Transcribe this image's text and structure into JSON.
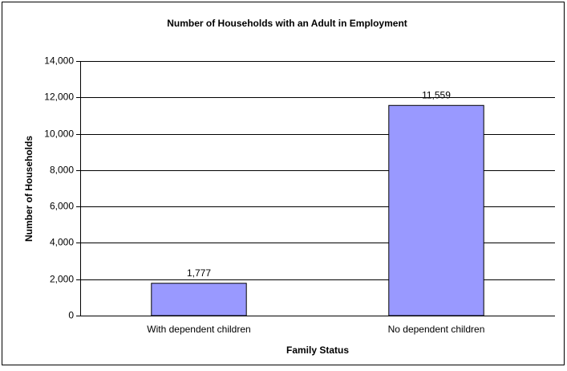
{
  "chart_data": {
    "type": "bar",
    "title": "Number of Households with an Adult in Employment",
    "x_label": "Family Status",
    "y_label": "Number of Households",
    "categories": [
      "With dependent children",
      "No dependent children"
    ],
    "values": [
      1777,
      11559
    ],
    "value_labels": [
      "1,777",
      "11,559"
    ],
    "color": "#9999ff",
    "ylim": [
      0,
      14000
    ],
    "yticks": [
      0,
      {
        "value": 2000,
        "label": "2,000"
      },
      {
        "value": 4000,
        "label": "4,000"
      },
      {
        "value": 6000,
        "label": "6,000"
      },
      {
        "value": 8000,
        "label": "8,000"
      },
      {
        "value": 10000,
        "label": "10,000"
      },
      {
        "value": 12000,
        "label": "12,000"
      },
      {
        "value": 14000,
        "label": "14,000"
      }
    ],
    "grid": true
  }
}
